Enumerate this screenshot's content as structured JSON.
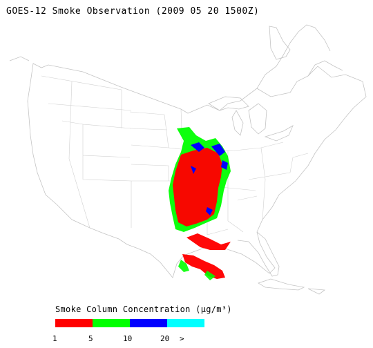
{
  "title": "GOES-12 Smoke Observation (2009 05 20  1500Z)",
  "legend": {
    "title": "Smoke Column Concentration (μg/m³)",
    "colors": [
      "#ff0000",
      "#00ff00",
      "#0000ff",
      "#00ffff"
    ],
    "ticks": [
      "1",
      "5",
      "10",
      "20",
      ">"
    ]
  },
  "map": {
    "region": "Continental United States with state boundaries",
    "smoke_plume_colors": {
      "low": "#ff0000",
      "medium": "#00ff00",
      "high": "#0000ff"
    }
  }
}
